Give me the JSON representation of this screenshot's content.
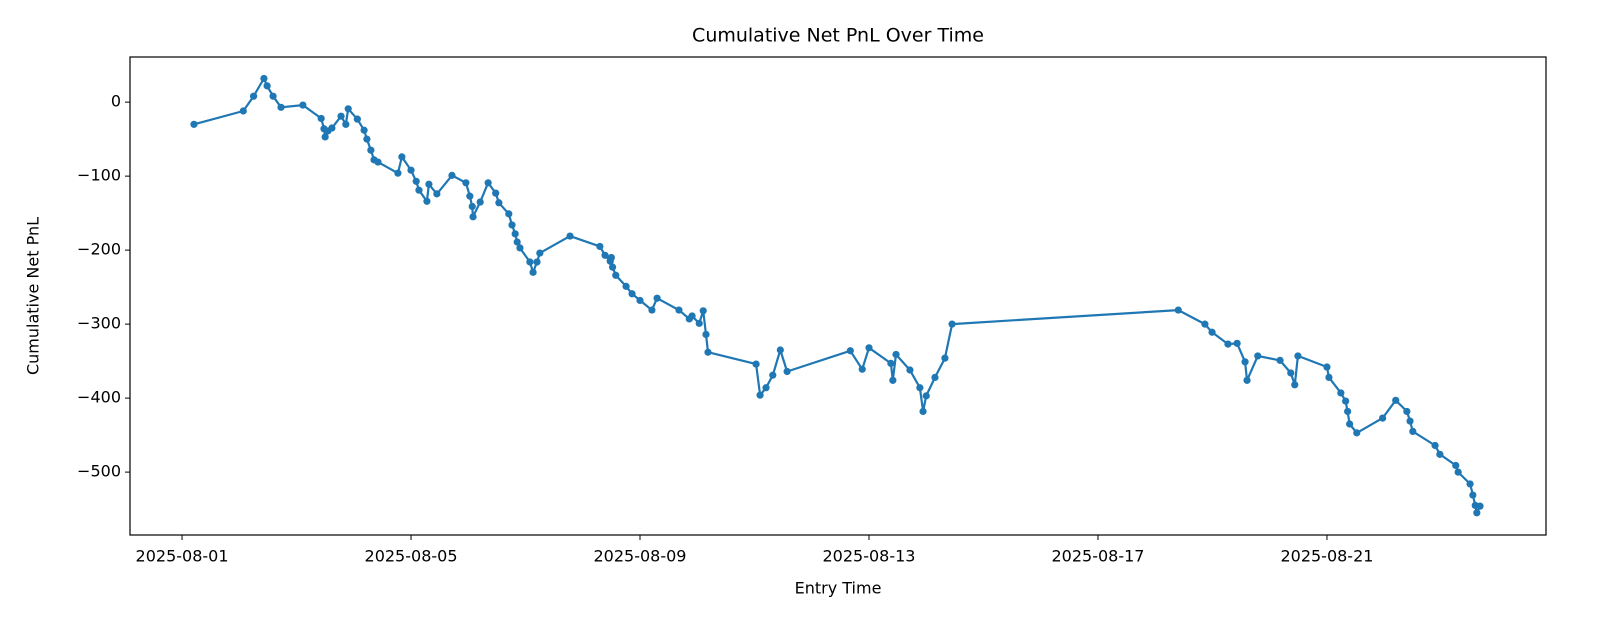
{
  "chart_data": {
    "type": "line",
    "title": "Cumulative Net PnL Over Time",
    "xlabel": "Entry Time",
    "ylabel": "Cumulative Net PnL",
    "color": "#1f77b4",
    "markers": true,
    "grid": false,
    "xlim": [
      "2025-07-31T02:11",
      "2025-08-24T19:50"
    ],
    "xticks": [
      "2025-08-01",
      "2025-08-05",
      "2025-08-09",
      "2025-08-13",
      "2025-08-17",
      "2025-08-21"
    ],
    "ylim": [
      -585,
      61
    ],
    "yticks": [
      {
        "value": -500,
        "label": "−500"
      },
      {
        "value": -400,
        "label": "−400"
      },
      {
        "value": -300,
        "label": "−300"
      },
      {
        "value": -200,
        "label": "−200"
      },
      {
        "value": -100,
        "label": "−100"
      },
      0
    ],
    "x": [
      "2025-08-01T05:00",
      "2025-08-02T01:40",
      "2025-08-02T06:00",
      "2025-08-02T10:20",
      "2025-08-02T11:40",
      "2025-08-02T14:10",
      "2025-08-02T17:30",
      "2025-08-03T02:40",
      "2025-08-03T10:20",
      "2025-08-03T11:30",
      "2025-08-03T12:00",
      "2025-08-03T13:10",
      "2025-08-03T14:50",
      "2025-08-03T18:40",
      "2025-08-03T20:40",
      "2025-08-03T21:40",
      "2025-08-04T01:30",
      "2025-08-04T04:20",
      "2025-08-04T05:30",
      "2025-08-04T07:10",
      "2025-08-04T08:30",
      "2025-08-04T10:10",
      "2025-08-04T18:30",
      "2025-08-04T20:10",
      "2025-08-05T00:00",
      "2025-08-05T02:10",
      "2025-08-05T03:20",
      "2025-08-05T06:40",
      "2025-08-05T07:30",
      "2025-08-05T10:50",
      "2025-08-05T17:10",
      "2025-08-05T23:00",
      "2025-08-06T00:40",
      "2025-08-06T01:40",
      "2025-08-06T02:00",
      "2025-08-06T05:00",
      "2025-08-06T08:20",
      "2025-08-06T11:30",
      "2025-08-06T12:50",
      "2025-08-06T17:00",
      "2025-08-06T18:20",
      "2025-08-06T19:40",
      "2025-08-06T20:30",
      "2025-08-06T21:40",
      "2025-08-07T01:50",
      "2025-08-07T03:10",
      "2025-08-07T04:50",
      "2025-08-07T06:00",
      "2025-08-07T18:40",
      "2025-08-08T07:10",
      "2025-08-08T09:20",
      "2025-08-08T11:30",
      "2025-08-08T12:00",
      "2025-08-08T12:30",
      "2025-08-08T13:50",
      "2025-08-08T18:10",
      "2025-08-08T20:40",
      "2025-08-09T00:00",
      "2025-08-09T05:00",
      "2025-08-09T07:10",
      "2025-08-09T16:20",
      "2025-08-09T20:40",
      "2025-08-09T21:50",
      "2025-08-10T00:50",
      "2025-08-10T02:30",
      "2025-08-10T03:40",
      "2025-08-10T04:30",
      "2025-08-11T00:40",
      "2025-08-11T02:20",
      "2025-08-11T04:50",
      "2025-08-11T07:40",
      "2025-08-11T10:50",
      "2025-08-11T13:40",
      "2025-08-12T16:10",
      "2025-08-12T21:10",
      "2025-08-13T00:00",
      "2025-08-13T09:10",
      "2025-08-13T10:00",
      "2025-08-13T11:20",
      "2025-08-13T17:10",
      "2025-08-13T21:20",
      "2025-08-13T22:40",
      "2025-08-14T00:00",
      "2025-08-14T03:40",
      "2025-08-14T07:50",
      "2025-08-14T10:50",
      "2025-08-18T09:40",
      "2025-08-18T20:50",
      "2025-08-18T23:50",
      "2025-08-19T06:30",
      "2025-08-19T10:20",
      "2025-08-19T13:40",
      "2025-08-19T14:30",
      "2025-08-19T19:00",
      "2025-08-20T04:20",
      "2025-08-20T08:50",
      "2025-08-20T10:30",
      "2025-08-20T11:50",
      "2025-08-21T00:00",
      "2025-08-21T00:50",
      "2025-08-21T05:50",
      "2025-08-21T07:50",
      "2025-08-21T08:40",
      "2025-08-21T09:30",
      "2025-08-21T12:30",
      "2025-08-21T23:20",
      "2025-08-22T04:50",
      "2025-08-22T09:30",
      "2025-08-22T10:50",
      "2025-08-22T12:00",
      "2025-08-22T21:20",
      "2025-08-22T23:20",
      "2025-08-23T06:00",
      "2025-08-23T07:00",
      "2025-08-23T12:00",
      "2025-08-23T13:10",
      "2025-08-23T14:10",
      "2025-08-23T14:50",
      "2025-08-23T16:10"
    ],
    "values": [
      -30,
      -12,
      8,
      32,
      22,
      8,
      -7,
      -4,
      -22,
      -36,
      -47,
      -39,
      -35,
      -19,
      -30,
      -9,
      -23,
      -38,
      -50,
      -65,
      -78,
      -81,
      -96,
      -74,
      -92,
      -107,
      -119,
      -134,
      -111,
      -124,
      -99,
      -109,
      -127,
      -141,
      -155,
      -135,
      -109,
      -123,
      -136,
      -151,
      -166,
      -178,
      -189,
      -197,
      -216,
      -230,
      -216,
      -204,
      -181,
      -195,
      -207,
      -215,
      -210,
      -223,
      -234,
      -249,
      -259,
      -268,
      -281,
      -265,
      -281,
      -293,
      -289,
      -299,
      -282,
      -314,
      -338,
      -354,
      -396,
      -386,
      -369,
      -335,
      -364,
      -336,
      -361,
      -332,
      -353,
      -376,
      -341,
      -362,
      -386,
      -418,
      -397,
      -372,
      -346,
      -300,
      -281,
      -300,
      -311,
      -327,
      -326,
      -351,
      -376,
      -343,
      -349,
      -366,
      -382,
      -343,
      -358,
      -372,
      -393,
      -404,
      -418,
      -435,
      -447,
      -427,
      -403,
      -418,
      -431,
      -445,
      -464,
      -476,
      -491,
      -500,
      -516,
      -531,
      -545,
      -555,
      -546
    ]
  }
}
